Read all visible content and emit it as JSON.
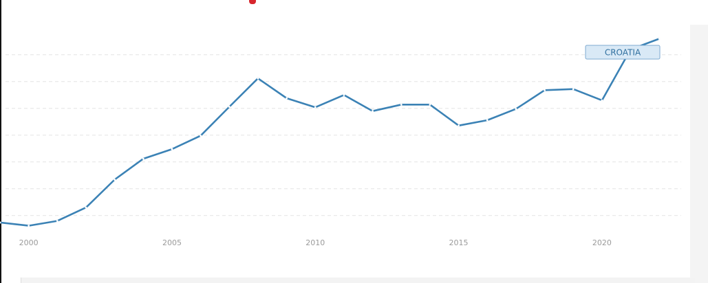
{
  "chart_data": {
    "type": "line",
    "series": [
      {
        "name": "CROATIA",
        "color": "#3b82b5",
        "x": [
          1999,
          2000,
          2001,
          2002,
          2003,
          2004,
          2005,
          2006,
          2007,
          2008,
          2009,
          2010,
          2011,
          2012,
          2013,
          2014,
          2015,
          2016,
          2017,
          2018,
          2019,
          2020,
          2021,
          2022
        ],
        "values": [
          18.7,
          18.1,
          19.0,
          21.5,
          26.7,
          30.6,
          32.4,
          34.9,
          40.3,
          45.6,
          41.9,
          40.2,
          42.5,
          39.5,
          40.7,
          40.7,
          36.8,
          37.8,
          39.9,
          43.4,
          43.6,
          41.5,
          51.0,
          53.0
        ]
      }
    ],
    "end_label": "CROATIA",
    "x_ticks": [
      2000,
      2005,
      2010,
      2015,
      2020
    ],
    "xlim": [
      1999,
      2023.7
    ],
    "ylim": [
      16,
      56
    ],
    "y_grid_values": [
      20,
      25,
      30,
      35,
      40,
      45,
      50
    ],
    "grid": true,
    "grid_color": "#e3e3e3",
    "label_fill": "#d9e9f6",
    "label_border": "#7eaad0"
  }
}
